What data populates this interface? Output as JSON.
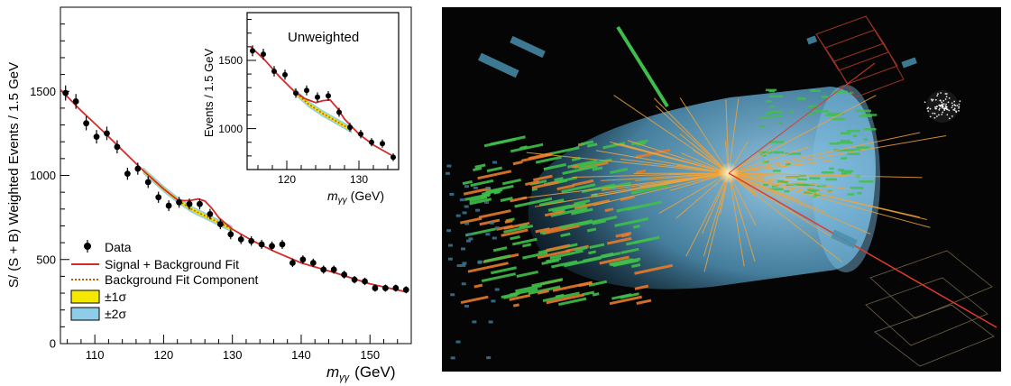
{
  "chart_data": [
    {
      "type": "scatter",
      "title": "",
      "xlabel": "m",
      "xlabel_sub": "γγ",
      "xlabel_unit": "(GeV)",
      "ylabel": "S/ (S + B) Weighted Events / 1.5 GeV",
      "xlim": [
        105,
        156
      ],
      "ylim": [
        0,
        2000
      ],
      "xticks": [
        110,
        120,
        130,
        140,
        150
      ],
      "yticks": [
        0,
        500,
        1000,
        1500
      ],
      "legend_position": "bottom-left",
      "legend": {
        "data": "Data",
        "fit": "Signal + Background Fit",
        "bkg": "Background Fit Component",
        "one_sigma": "±1σ",
        "two_sigma": "±2σ"
      },
      "colors": {
        "fit": "#d42a2a",
        "bkg": "#c05a00",
        "one_sigma": "#f5e800",
        "two_sigma": "#8ecde8"
      },
      "series": [
        {
          "name": "Data",
          "x": [
            105.75,
            107.25,
            108.75,
            110.25,
            111.75,
            113.25,
            114.75,
            116.25,
            117.75,
            119.25,
            120.75,
            122.25,
            123.75,
            125.25,
            126.75,
            128.25,
            129.75,
            131.25,
            132.75,
            134.25,
            135.75,
            137.25,
            138.75,
            140.25,
            141.75,
            143.25,
            144.75,
            146.25,
            147.75,
            149.25,
            150.75,
            152.25,
            153.75,
            155.25
          ],
          "y": [
            1490,
            1440,
            1310,
            1230,
            1250,
            1170,
            1010,
            1040,
            960,
            870,
            820,
            840,
            830,
            830,
            770,
            710,
            650,
            620,
            610,
            590,
            580,
            590,
            480,
            500,
            480,
            440,
            440,
            410,
            380,
            370,
            330,
            330,
            330,
            320
          ],
          "yerr": [
            45,
            44,
            42,
            40,
            40,
            39,
            36,
            36,
            35,
            33,
            32,
            32,
            32,
            32,
            31,
            30,
            29,
            28,
            28,
            27,
            27,
            27,
            25,
            25,
            25,
            24,
            24,
            23,
            22,
            22,
            21,
            21,
            21,
            21
          ]
        },
        {
          "name": "Signal + Background Fit",
          "x": [
            105,
            108,
            111,
            114,
            117,
            120,
            122,
            123,
            124,
            125,
            126,
            127,
            128,
            130,
            133,
            136,
            140,
            145,
            150,
            155
          ],
          "y": [
            1510,
            1385,
            1270,
            1150,
            1030,
            920,
            855,
            850,
            852,
            860,
            848,
            805,
            750,
            680,
            610,
            550,
            480,
            420,
            355,
            310
          ]
        },
        {
          "name": "Background Fit Component",
          "x": [
            117,
            120,
            122,
            124,
            126,
            128,
            130
          ],
          "y": [
            1030,
            920,
            855,
            800,
            760,
            720,
            680
          ]
        }
      ]
    },
    {
      "type": "scatter",
      "title": "Unweighted",
      "xlabel": "m",
      "xlabel_sub": "γγ",
      "xlabel_unit": "(GeV)",
      "ylabel": "Events / 1.5 GeV",
      "xlim": [
        114.5,
        135.5
      ],
      "ylim": [
        700,
        1850
      ],
      "xticks": [
        120,
        130
      ],
      "yticks": [
        1000,
        1500
      ],
      "series": [
        {
          "name": "Data",
          "x": [
            115.25,
            116.75,
            118.25,
            119.75,
            121.25,
            122.75,
            124.25,
            125.75,
            127.25,
            128.75,
            130.25,
            131.75,
            133.25,
            134.75
          ],
          "y": [
            1570,
            1545,
            1420,
            1395,
            1260,
            1280,
            1230,
            1240,
            1120,
            1010,
            960,
            900,
            890,
            790
          ],
          "yerr": [
            40,
            40,
            38,
            37,
            35,
            36,
            35,
            35,
            33,
            32,
            31,
            30,
            30,
            28
          ]
        },
        {
          "name": "Signal + Background Fit",
          "x": [
            115,
            117,
            119,
            121,
            122.5,
            124,
            125,
            126,
            127,
            128,
            130,
            132,
            135
          ],
          "y": [
            1600,
            1500,
            1380,
            1275,
            1220,
            1190,
            1205,
            1210,
            1150,
            1070,
            960,
            880,
            790
          ]
        },
        {
          "name": "Background Fit Component",
          "x": [
            121,
            123,
            125,
            127,
            129
          ],
          "y": [
            1275,
            1180,
            1110,
            1050,
            990
          ]
        }
      ]
    }
  ],
  "colors": {
    "cylinder": "#6fb6dc",
    "tracks_orange": "#f0a43a",
    "tracks_green": "#3fbf4a",
    "muon_line": "#e03a2a"
  }
}
